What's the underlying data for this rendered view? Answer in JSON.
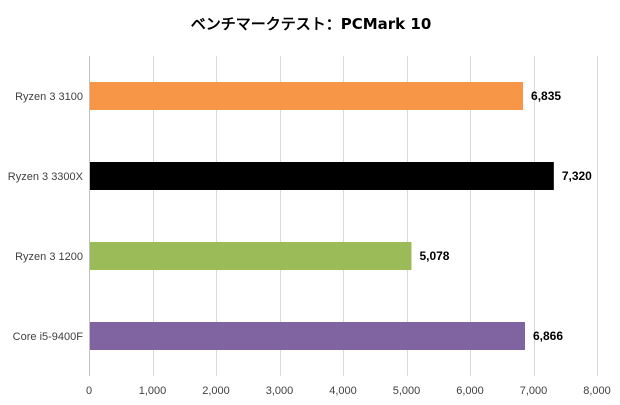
{
  "chart_data": {
    "type": "bar",
    "orientation": "horizontal",
    "title": "ベンチマークテスト：PCMark 10",
    "categories": [
      "Ryzen 3 3100",
      "Ryzen 3 3300X",
      "Ryzen 3 1200",
      "Core i5-9400F"
    ],
    "values": [
      6835,
      7320,
      5078,
      6866
    ],
    "value_labels": [
      "6,835",
      "7,320",
      "5,078",
      "6,866"
    ],
    "bar_colors": [
      "#f79646",
      "#000000",
      "#9bbb59",
      "#8064a2"
    ],
    "xlim": [
      0,
      8000
    ],
    "x_ticks": [
      0,
      1000,
      2000,
      3000,
      4000,
      5000,
      6000,
      7000,
      8000
    ],
    "x_tick_labels": [
      "0",
      "1,000",
      "2,000",
      "3,000",
      "4,000",
      "5,000",
      "6,000",
      "7,000",
      "8,000"
    ],
    "xlabel": "",
    "ylabel": "",
    "grid": "vertical",
    "legend": "none"
  }
}
